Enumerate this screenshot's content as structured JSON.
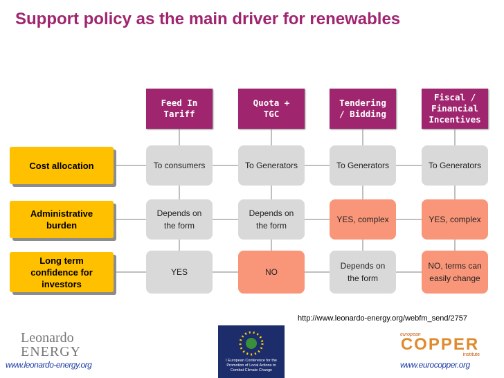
{
  "title": "Support policy as the main driver for renewables",
  "columns": [
    "Feed In Tariff",
    "Quota + TGC",
    "Tendering / Bidding",
    "Fiscal / Financial Incentives"
  ],
  "rows": [
    {
      "label": "Cost allocation",
      "cells": [
        {
          "text": "To consumers",
          "color": "#d9d9d9"
        },
        {
          "text": "To Generators",
          "color": "#d9d9d9"
        },
        {
          "text": "To Generators",
          "color": "#d9d9d9"
        },
        {
          "text": "To Generators",
          "color": "#d9d9d9"
        }
      ]
    },
    {
      "label": "Administrative burden",
      "cells": [
        {
          "text": "Depends on the form",
          "color": "#d9d9d9"
        },
        {
          "text": "Depends on the form",
          "color": "#d9d9d9"
        },
        {
          "text": "YES, complex",
          "color": "#f9967a"
        },
        {
          "text": "YES, complex",
          "color": "#f9967a"
        }
      ]
    },
    {
      "label": "Long term confidence for investors",
      "cells": [
        {
          "text": "YES",
          "color": "#d9d9d9"
        },
        {
          "text": "NO",
          "color": "#f9967a"
        },
        {
          "text": "Depends on the form",
          "color": "#d9d9d9"
        },
        {
          "text": "NO, terms can easily change",
          "color": "#f9967a"
        }
      ]
    }
  ],
  "source_url": "http://www.leonardo-energy.org/webfm_send/2757",
  "footer": {
    "left_logo": [
      "Leonardo",
      "ENERGY"
    ],
    "left_url": "www.leonardo-energy.org",
    "center_logo": "I European Conference for the Promotion of Local Actions to Combat Climate Change",
    "right_logo": [
      "european",
      "COPPER",
      "institute"
    ],
    "right_url": "www.eurocopper.org"
  }
}
